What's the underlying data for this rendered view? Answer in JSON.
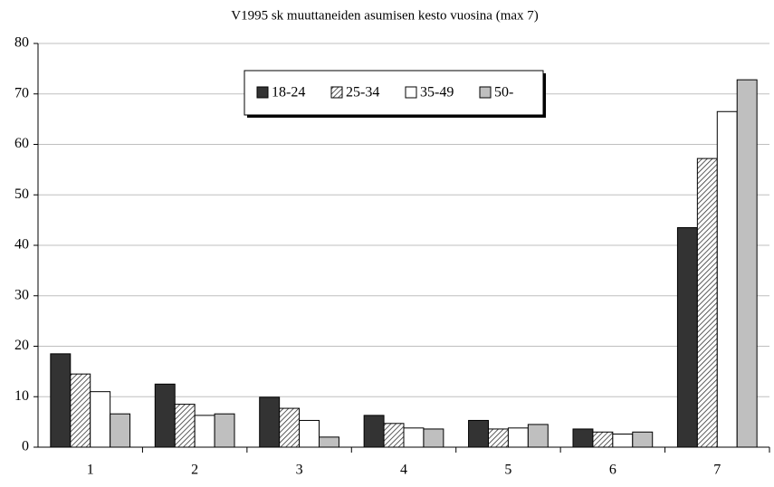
{
  "chart_data": {
    "type": "bar",
    "title": "V1995 sk muuttaneiden asumisen kesto vuosina (max 7)",
    "categories": [
      "1",
      "2",
      "3",
      "4",
      "5",
      "6",
      "7"
    ],
    "series": [
      {
        "name": "18-24",
        "color": "#333333",
        "values": [
          18.5,
          12.5,
          9.9,
          6.3,
          5.3,
          3.6,
          43.5
        ]
      },
      {
        "name": "25-34",
        "color": "#ffffff",
        "pattern": "hatch",
        "values": [
          14.5,
          8.5,
          7.7,
          4.7,
          3.6,
          3.0,
          57.2
        ]
      },
      {
        "name": "35-49",
        "color": "#ffffff",
        "values": [
          11.0,
          6.3,
          5.3,
          3.8,
          3.8,
          2.6,
          66.5
        ]
      },
      {
        "name": "50-",
        "color": "#bfbfbf",
        "values": [
          6.6,
          6.6,
          2.0,
          3.6,
          4.5,
          3.0,
          72.8
        ]
      }
    ],
    "ylim": [
      0,
      80
    ],
    "yticks": [
      0,
      10,
      20,
      30,
      40,
      50,
      60,
      70,
      80
    ],
    "grid": true,
    "legend": "top"
  }
}
